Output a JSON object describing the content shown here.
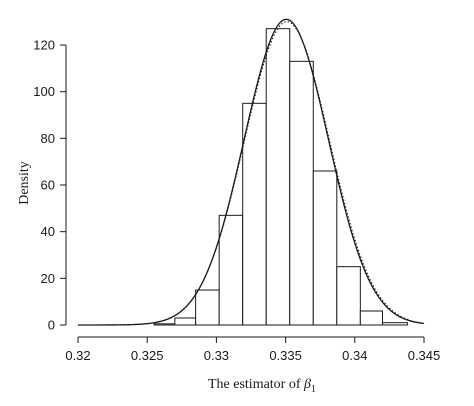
{
  "chart_data": {
    "type": "bar",
    "title": "",
    "xlabel": "The estimator of ",
    "xlabel_symbol": "β",
    "xlabel_subscript": "1",
    "ylabel": "Density",
    "xlim": [
      0.32,
      0.345
    ],
    "ylim": [
      0,
      130
    ],
    "xticks": [
      0.32,
      0.325,
      0.33,
      0.335,
      0.34,
      0.345
    ],
    "xtick_labels": [
      "0.32",
      "0.325",
      "0.33",
      "0.335",
      "0.34",
      "0.345"
    ],
    "yticks": [
      0,
      20,
      40,
      60,
      80,
      100,
      120
    ],
    "ytick_labels": [
      "0",
      "20",
      "40",
      "60",
      "80",
      "100",
      "120"
    ],
    "grid": false,
    "bins": [
      {
        "x0": 0.3255,
        "x1": 0.327,
        "value": 0.5
      },
      {
        "x0": 0.327,
        "x1": 0.3285,
        "value": 3
      },
      {
        "x0": 0.3285,
        "x1": 0.3302,
        "value": 15
      },
      {
        "x0": 0.3302,
        "x1": 0.3319,
        "value": 47
      },
      {
        "x0": 0.3319,
        "x1": 0.3336,
        "value": 95
      },
      {
        "x0": 0.3336,
        "x1": 0.3353,
        "value": 127
      },
      {
        "x0": 0.3353,
        "x1": 0.337,
        "value": 113
      },
      {
        "x0": 0.337,
        "x1": 0.3387,
        "value": 66
      },
      {
        "x0": 0.3387,
        "x1": 0.3404,
        "value": 25
      },
      {
        "x0": 0.3404,
        "x1": 0.342,
        "value": 6
      },
      {
        "x0": 0.342,
        "x1": 0.3438,
        "value": 1
      }
    ],
    "curves": [
      {
        "style": "solid",
        "mean": 0.33505,
        "peak": 131,
        "sd": 0.00305
      },
      {
        "style": "dotted",
        "mean": 0.3351,
        "peak": 130,
        "sd": 0.00308
      }
    ]
  }
}
